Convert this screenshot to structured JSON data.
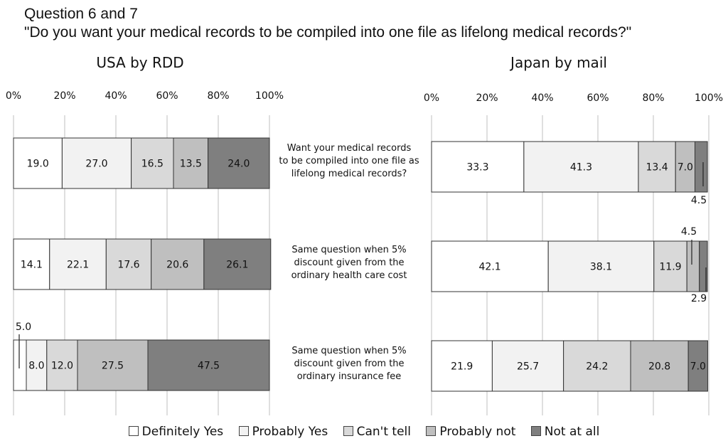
{
  "title": {
    "line1": "Question 6 and 7",
    "line2": "\"Do you want your medical records to be compiled  into one file as lifelong medical  records?\""
  },
  "category_labels": [
    [
      "Want your medical records",
      "to be compiled into one file as",
      "lifelong medical records?"
    ],
    [
      "Same question when 5%",
      "discount given from the",
      "ordinary health care cost"
    ],
    [
      "Same question when 5%",
      "discount given from the",
      "ordinary insurance fee"
    ]
  ],
  "legend": {
    "items": [
      {
        "label": "Definitely Yes",
        "color": "#ffffff"
      },
      {
        "label": "Probably Yes",
        "color": "#f2f2f2"
      },
      {
        "label": "Can't tell",
        "color": "#d9d9d9"
      },
      {
        "label": "Probably not",
        "color": "#bfbfbf"
      },
      {
        "label": "Not at all",
        "color": "#7f7f7f"
      }
    ]
  },
  "chart_data": [
    {
      "type": "bar",
      "orientation": "horizontal",
      "stacked": "percent",
      "title": "USA by RDD",
      "xlim": [
        0,
        100
      ],
      "ticks": [
        "0%",
        "20%",
        "40%",
        "60%",
        "80%",
        "100%"
      ],
      "series_names": [
        "Definitely Yes",
        "Probably Yes",
        "Can't tell",
        "Probably not",
        "Not at all"
      ],
      "rows": [
        {
          "values": [
            19.0,
            27.0,
            16.5,
            13.5,
            24.0
          ],
          "labels": [
            "19.0",
            "27.0",
            "16.5",
            "13.5",
            "24.0"
          ]
        },
        {
          "values": [
            14.1,
            22.1,
            17.6,
            20.6,
            26.1
          ],
          "labels": [
            "14.1",
            "22.1",
            "17.6",
            "20.6",
            "26.1"
          ]
        },
        {
          "values": [
            5.0,
            8.0,
            12.0,
            27.5,
            47.5
          ],
          "labels": [
            "5.0",
            "8.0",
            "12.0",
            "27.5",
            "47.5"
          ]
        }
      ]
    },
    {
      "type": "bar",
      "orientation": "horizontal",
      "stacked": "percent",
      "title": "Japan by mail",
      "xlim": [
        0,
        100
      ],
      "ticks": [
        "0%",
        "20%",
        "40%",
        "60%",
        "80%",
        "100%"
      ],
      "series_names": [
        "Definitely Yes",
        "Probably Yes",
        "Can't tell",
        "Probably not",
        "Not at all"
      ],
      "rows": [
        {
          "values": [
            33.3,
            41.3,
            13.4,
            7.0,
            4.5
          ],
          "labels": [
            "33.3",
            "41.3",
            "13.4",
            "7.0",
            "4.5"
          ]
        },
        {
          "values": [
            42.1,
            38.1,
            11.9,
            4.5,
            2.9
          ],
          "labels": [
            "42.1",
            "38.1",
            "11.9",
            "4.5",
            "2.9"
          ]
        },
        {
          "values": [
            21.9,
            25.7,
            24.2,
            20.8,
            7.0
          ],
          "labels": [
            "21.9",
            "25.7",
            "24.2",
            "20.8",
            "7.0"
          ]
        }
      ]
    }
  ]
}
